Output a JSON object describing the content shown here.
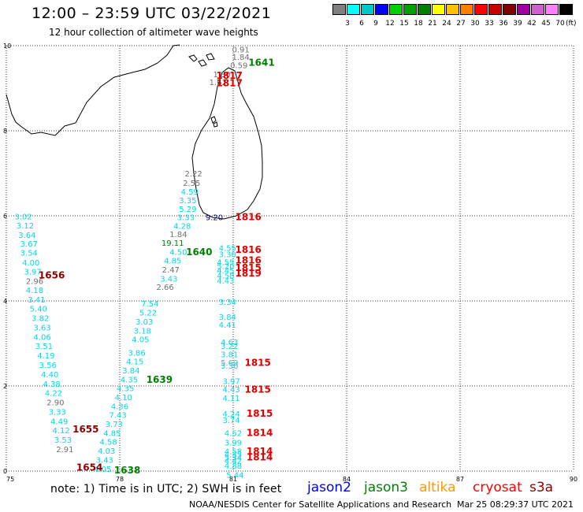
{
  "header": {
    "title": "12:00 – 23:59 UTC 03/22/2021",
    "subtitle": "12 hour collection of altimeter wave heights"
  },
  "legend": {
    "labels": [
      "3",
      "6",
      "9",
      "12",
      "15",
      "18",
      "21",
      "24",
      "27",
      "30",
      "33",
      "36",
      "39",
      "42",
      "45",
      "70"
    ],
    "unit": "(ft)",
    "colors": [
      "#808080",
      "#00ffff",
      "#00c8c8",
      "#0000ff",
      "#00d000",
      "#00a000",
      "#008000",
      "#ffff00",
      "#ffc000",
      "#ff8000",
      "#ff0000",
      "#c80000",
      "#800000",
      "#a000a0",
      "#d060d0",
      "#ff80ff",
      "#000000"
    ]
  },
  "axes": {
    "x_ticks": [
      "75",
      "78",
      "81",
      "84",
      "87",
      "90"
    ],
    "y_ticks": [
      "0",
      "2",
      "4",
      "6",
      "8",
      "10"
    ]
  },
  "chart_data": {
    "type": "scatter",
    "xlim": [
      75,
      90
    ],
    "ylim": [
      0,
      10
    ],
    "grid": true,
    "x_ticks": [
      75,
      78,
      81,
      84,
      87,
      90
    ],
    "y_ticks": [
      0,
      2,
      4,
      6,
      8,
      10
    ],
    "value_colors": {
      "cyan": "#00d8e8",
      "gray": "#707070",
      "green": "#008000",
      "navy": "#000080",
      "red": "#e00000",
      "darkred": "#8b0000"
    },
    "values": [
      {
        "x": 81.2,
        "y": 9.92,
        "v": "0.91",
        "c": "gray"
      },
      {
        "x": 81.2,
        "y": 9.74,
        "v": "1.84",
        "c": "gray"
      },
      {
        "x": 81.15,
        "y": 9.55,
        "v": "0.59",
        "c": "gray"
      },
      {
        "x": 80.7,
        "y": 9.33,
        "v": "1.30",
        "c": "gray"
      },
      {
        "x": 80.6,
        "y": 9.15,
        "v": "1.62",
        "c": "gray"
      },
      {
        "x": 79.95,
        "y": 7.0,
        "v": "2.22",
        "c": "gray"
      },
      {
        "x": 79.9,
        "y": 6.78,
        "v": "2.55",
        "c": "gray"
      },
      {
        "x": 79.85,
        "y": 6.57,
        "v": "4.59",
        "c": "cyan"
      },
      {
        "x": 79.8,
        "y": 6.37,
        "v": "3.35",
        "c": "cyan"
      },
      {
        "x": 79.8,
        "y": 6.17,
        "v": "5.29",
        "c": "cyan"
      },
      {
        "x": 79.75,
        "y": 5.97,
        "v": "3.33",
        "c": "cyan"
      },
      {
        "x": 79.65,
        "y": 5.77,
        "v": "4.28",
        "c": "cyan"
      },
      {
        "x": 79.55,
        "y": 5.57,
        "v": "1.84",
        "c": "gray"
      },
      {
        "x": 79.4,
        "y": 5.37,
        "v": "19.11",
        "c": "green"
      },
      {
        "x": 79.55,
        "y": 5.16,
        "v": "4.50",
        "c": "cyan"
      },
      {
        "x": 79.4,
        "y": 4.95,
        "v": "4.85",
        "c": "cyan"
      },
      {
        "x": 79.35,
        "y": 4.74,
        "v": "2.47",
        "c": "gray"
      },
      {
        "x": 79.3,
        "y": 4.53,
        "v": "3.43",
        "c": "cyan"
      },
      {
        "x": 79.2,
        "y": 4.33,
        "v": "2.66",
        "c": "gray"
      },
      {
        "x": 78.8,
        "y": 3.94,
        "v": "7.54",
        "c": "cyan"
      },
      {
        "x": 78.75,
        "y": 3.73,
        "v": "5.22",
        "c": "cyan"
      },
      {
        "x": 78.65,
        "y": 3.52,
        "v": "3.03",
        "c": "cyan"
      },
      {
        "x": 78.6,
        "y": 3.31,
        "v": "3.18",
        "c": "cyan"
      },
      {
        "x": 78.55,
        "y": 3.1,
        "v": "4.05",
        "c": "cyan"
      },
      {
        "x": 78.45,
        "y": 2.79,
        "v": "3.86",
        "c": "cyan"
      },
      {
        "x": 78.4,
        "y": 2.58,
        "v": "4.15",
        "c": "cyan"
      },
      {
        "x": 78.3,
        "y": 2.37,
        "v": "3.84",
        "c": "cyan"
      },
      {
        "x": 78.25,
        "y": 2.16,
        "v": "4.35",
        "c": "cyan"
      },
      {
        "x": 78.15,
        "y": 1.95,
        "v": "4.35",
        "c": "cyan"
      },
      {
        "x": 78.1,
        "y": 1.74,
        "v": "4.10",
        "c": "cyan"
      },
      {
        "x": 78.0,
        "y": 1.53,
        "v": "4.36",
        "c": "cyan"
      },
      {
        "x": 77.95,
        "y": 1.32,
        "v": "7.43",
        "c": "cyan"
      },
      {
        "x": 77.85,
        "y": 1.11,
        "v": "3.73",
        "c": "cyan"
      },
      {
        "x": 77.8,
        "y": 0.9,
        "v": "4.85",
        "c": "cyan"
      },
      {
        "x": 77.7,
        "y": 0.69,
        "v": "4.58",
        "c": "cyan"
      },
      {
        "x": 77.65,
        "y": 0.48,
        "v": "4.03",
        "c": "cyan"
      },
      {
        "x": 77.6,
        "y": 0.27,
        "v": "3.43",
        "c": "cyan"
      },
      {
        "x": 77.55,
        "y": 0.06,
        "v": "4.05",
        "c": "cyan"
      },
      {
        "x": 75.45,
        "y": 5.99,
        "v": "3.02",
        "c": "cyan"
      },
      {
        "x": 75.5,
        "y": 5.78,
        "v": "3.12",
        "c": "cyan"
      },
      {
        "x": 75.55,
        "y": 5.56,
        "v": "3.64",
        "c": "cyan"
      },
      {
        "x": 75.6,
        "y": 5.35,
        "v": "3.67",
        "c": "cyan"
      },
      {
        "x": 75.6,
        "y": 5.14,
        "v": "3.54",
        "c": "cyan"
      },
      {
        "x": 75.65,
        "y": 4.91,
        "v": "4.00",
        "c": "cyan"
      },
      {
        "x": 75.7,
        "y": 4.69,
        "v": "3.97",
        "c": "cyan"
      },
      {
        "x": 75.75,
        "y": 4.47,
        "v": "2.96",
        "c": "gray"
      },
      {
        "x": 75.75,
        "y": 4.26,
        "v": "4.18",
        "c": "cyan"
      },
      {
        "x": 75.8,
        "y": 4.04,
        "v": "3.41",
        "c": "cyan"
      },
      {
        "x": 75.85,
        "y": 3.82,
        "v": "5.40",
        "c": "cyan"
      },
      {
        "x": 75.9,
        "y": 3.6,
        "v": "3.82",
        "c": "cyan"
      },
      {
        "x": 75.95,
        "y": 3.38,
        "v": "3.63",
        "c": "cyan"
      },
      {
        "x": 75.95,
        "y": 3.16,
        "v": "4.06",
        "c": "cyan"
      },
      {
        "x": 76.0,
        "y": 2.94,
        "v": "3.51",
        "c": "cyan"
      },
      {
        "x": 76.05,
        "y": 2.72,
        "v": "4.19",
        "c": "cyan"
      },
      {
        "x": 76.1,
        "y": 2.5,
        "v": "3.56",
        "c": "cyan"
      },
      {
        "x": 76.15,
        "y": 2.28,
        "v": "4.40",
        "c": "cyan"
      },
      {
        "x": 76.2,
        "y": 2.06,
        "v": "4.38",
        "c": "cyan"
      },
      {
        "x": 76.25,
        "y": 1.84,
        "v": "4.22",
        "c": "cyan"
      },
      {
        "x": 76.3,
        "y": 1.62,
        "v": "2.90",
        "c": "gray"
      },
      {
        "x": 76.35,
        "y": 1.4,
        "v": "3.33",
        "c": "cyan"
      },
      {
        "x": 76.4,
        "y": 1.18,
        "v": "4.49",
        "c": "cyan"
      },
      {
        "x": 76.45,
        "y": 0.96,
        "v": "4.12",
        "c": "cyan"
      },
      {
        "x": 76.5,
        "y": 0.74,
        "v": "3.53",
        "c": "cyan"
      },
      {
        "x": 76.55,
        "y": 0.52,
        "v": "2.91",
        "c": "gray"
      },
      {
        "x": 80.5,
        "y": 5.97,
        "v": "9.20",
        "c": "navy"
      },
      {
        "x": 80.85,
        "y": 5.25,
        "v": "4.55",
        "c": "cyan"
      },
      {
        "x": 80.85,
        "y": 5.1,
        "v": "3.30",
        "c": "cyan"
      },
      {
        "x": 80.8,
        "y": 4.92,
        "v": "4.55",
        "c": "cyan"
      },
      {
        "x": 80.8,
        "y": 4.82,
        "v": "5.20",
        "c": "cyan"
      },
      {
        "x": 80.8,
        "y": 4.72,
        "v": "4.45",
        "c": "cyan"
      },
      {
        "x": 80.8,
        "y": 4.6,
        "v": "4.58",
        "c": "cyan"
      },
      {
        "x": 80.8,
        "y": 4.48,
        "v": "4.43",
        "c": "cyan"
      },
      {
        "x": 80.85,
        "y": 3.98,
        "v": "3.34",
        "c": "cyan"
      },
      {
        "x": 80.85,
        "y": 3.63,
        "v": "3.84",
        "c": "cyan"
      },
      {
        "x": 80.85,
        "y": 3.44,
        "v": "4.41",
        "c": "cyan"
      },
      {
        "x": 80.9,
        "y": 3.04,
        "v": "4.63",
        "c": "cyan"
      },
      {
        "x": 80.9,
        "y": 2.94,
        "v": "3.22",
        "c": "cyan"
      },
      {
        "x": 80.9,
        "y": 2.75,
        "v": "3.81",
        "c": "cyan"
      },
      {
        "x": 80.9,
        "y": 2.56,
        "v": "5.69",
        "c": "cyan"
      },
      {
        "x": 80.9,
        "y": 2.48,
        "v": "3.30",
        "c": "cyan"
      },
      {
        "x": 80.95,
        "y": 2.12,
        "v": "3.97",
        "c": "cyan"
      },
      {
        "x": 80.95,
        "y": 1.93,
        "v": "4.43",
        "c": "cyan"
      },
      {
        "x": 80.95,
        "y": 1.72,
        "v": "4.11",
        "c": "cyan"
      },
      {
        "x": 80.95,
        "y": 1.35,
        "v": "4.24",
        "c": "cyan"
      },
      {
        "x": 80.95,
        "y": 1.2,
        "v": "3.74",
        "c": "cyan"
      },
      {
        "x": 81.0,
        "y": 0.9,
        "v": "4.52",
        "c": "cyan"
      },
      {
        "x": 81.0,
        "y": 0.68,
        "v": "3.99",
        "c": "cyan"
      },
      {
        "x": 81.0,
        "y": 0.47,
        "v": "4.58",
        "c": "cyan"
      },
      {
        "x": 81.0,
        "y": 0.4,
        "v": "4.35",
        "c": "cyan"
      },
      {
        "x": 81.0,
        "y": 0.32,
        "v": "5.34",
        "c": "cyan"
      },
      {
        "x": 81.0,
        "y": 0.25,
        "v": "4.42",
        "c": "cyan"
      },
      {
        "x": 81.0,
        "y": 0.13,
        "v": "4.88",
        "c": "cyan"
      },
      {
        "x": 81.05,
        "y": -0.08,
        "v": "5.44",
        "c": "cyan"
      }
    ],
    "tracks": [
      {
        "x": 81.75,
        "y": 9.6,
        "v": "1641",
        "c": "green"
      },
      {
        "x": 80.9,
        "y": 9.3,
        "v": "1817",
        "c": "red"
      },
      {
        "x": 80.9,
        "y": 9.12,
        "v": "1817",
        "c": "red"
      },
      {
        "x": 81.4,
        "y": 5.97,
        "v": "1816",
        "c": "red"
      },
      {
        "x": 81.4,
        "y": 5.2,
        "v": "1816",
        "c": "red"
      },
      {
        "x": 81.4,
        "y": 4.95,
        "v": "1816",
        "c": "red"
      },
      {
        "x": 81.4,
        "y": 4.78,
        "v": "1815",
        "c": "red"
      },
      {
        "x": 81.4,
        "y": 4.65,
        "v": "1819",
        "c": "red"
      },
      {
        "x": 80.1,
        "y": 5.15,
        "v": "1640",
        "c": "green"
      },
      {
        "x": 76.2,
        "y": 4.6,
        "v": "1656",
        "c": "darkred"
      },
      {
        "x": 81.65,
        "y": 2.55,
        "v": "1815",
        "c": "red"
      },
      {
        "x": 81.65,
        "y": 1.92,
        "v": "1815",
        "c": "red"
      },
      {
        "x": 79.05,
        "y": 2.15,
        "v": "1639",
        "c": "green"
      },
      {
        "x": 81.7,
        "y": 1.35,
        "v": "1815",
        "c": "red"
      },
      {
        "x": 81.7,
        "y": 0.9,
        "v": "1814",
        "c": "red"
      },
      {
        "x": 81.7,
        "y": 0.46,
        "v": "1814",
        "c": "red"
      },
      {
        "x": 81.7,
        "y": 0.32,
        "v": "1814",
        "c": "red"
      },
      {
        "x": 77.1,
        "y": 0.98,
        "v": "1655",
        "c": "darkred"
      },
      {
        "x": 77.2,
        "y": 0.08,
        "v": "1654",
        "c": "darkred"
      },
      {
        "x": 78.2,
        "y": 0.02,
        "v": "1638",
        "c": "green"
      }
    ]
  },
  "footer": {
    "note": "note:  1) Time is in UTC;  2) SWH is in feet",
    "satellites": [
      {
        "name": "jason2",
        "color": "#0000ff"
      },
      {
        "name": "jason3",
        "color": "#008000"
      },
      {
        "name": "altika",
        "color": "#ff9900"
      },
      {
        "name": "cryosat",
        "color": "#ff0000"
      },
      {
        "name": "s3a",
        "color": "#8b0000"
      }
    ],
    "credit": "NOAA/NESDIS Center for Satellite Applications and Research",
    "timestamp": "Mar 25 08:29:37 UTC 2021"
  }
}
